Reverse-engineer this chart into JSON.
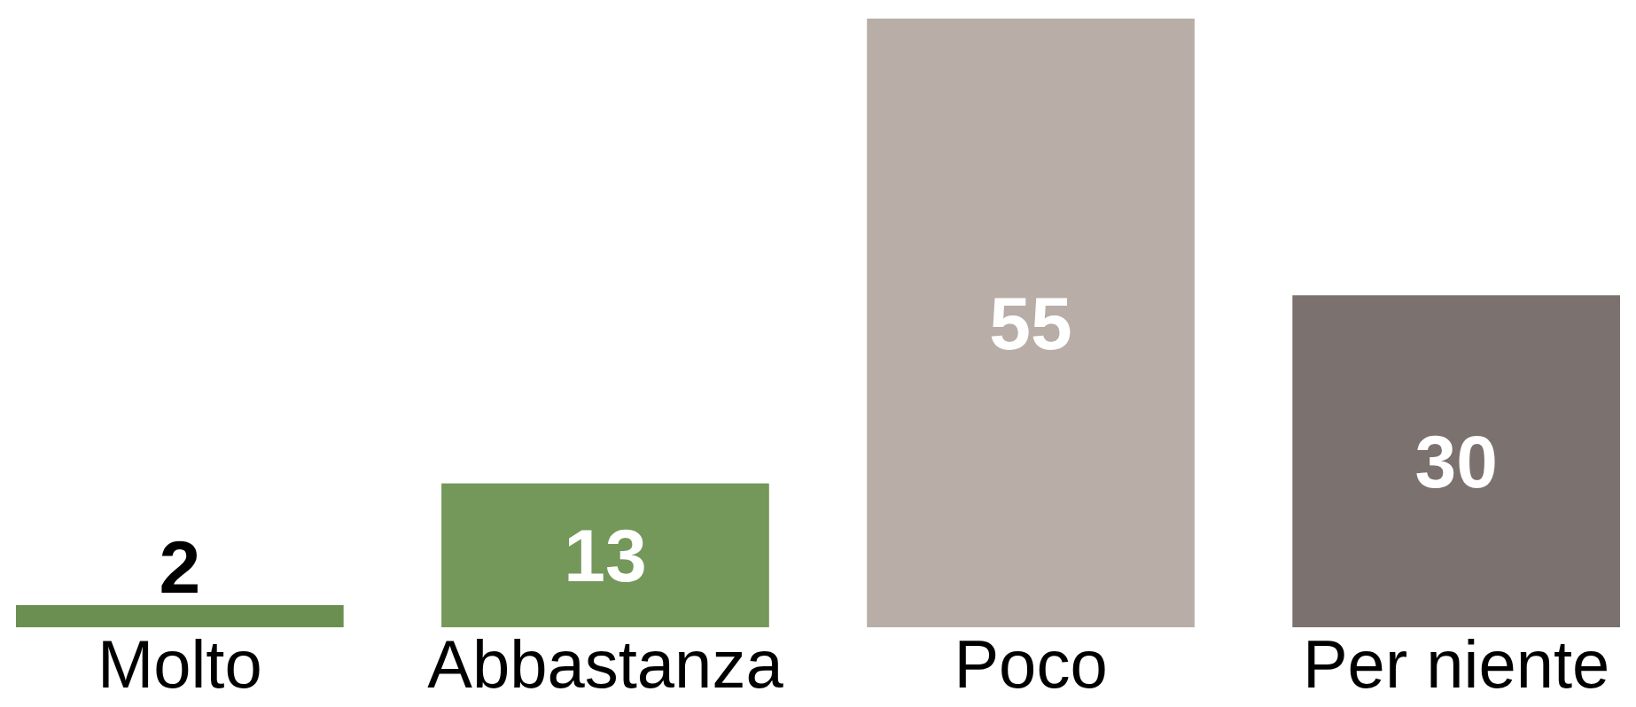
{
  "chart_data": {
    "type": "bar",
    "categories": [
      "Molto",
      "Abbastanza",
      "Poco",
      "Per niente"
    ],
    "values": [
      2,
      13,
      55,
      30
    ],
    "colors": [
      "#6b8f50",
      "#74975a",
      "#b8ada7",
      "#7b716f"
    ],
    "data_labels": true
  }
}
